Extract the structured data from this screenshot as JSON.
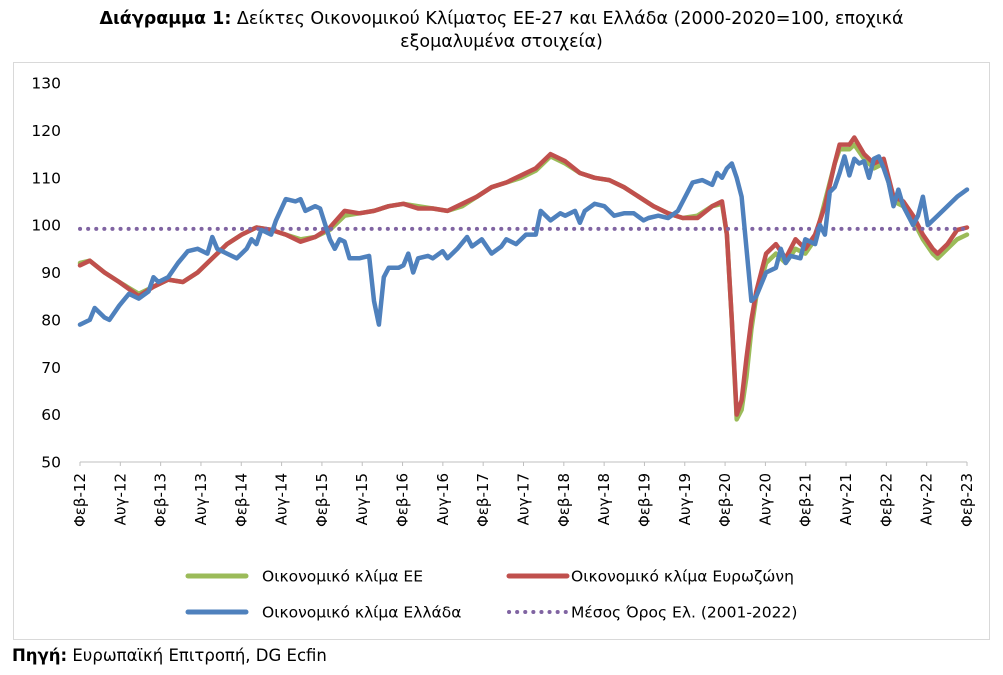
{
  "header": {
    "title_bold": "Διάγραμμα 1:",
    "title_line1": " Δείκτες Οικονομικού Κλίματος ΕΕ-27 και Ελλάδα (2000-2020=100, εποχικά",
    "title_line2": "εξομαλυμένα στοιχεία)"
  },
  "footer": {
    "source_bold": "Πηγή:",
    "source_text": " Ευρωπαϊκή Επιτροπή, DG Ecfin"
  },
  "chart_data": {
    "type": "line",
    "title": "Διάγραμμα 1: Δείκτες Οικονομικού Κλίματος ΕΕ-27 και Ελλάδα (2000-2020=100, εποχικά εξομαλυμένα στοιχεία)",
    "ylim": [
      50,
      130
    ],
    "yticks": [
      50,
      60,
      70,
      80,
      90,
      100,
      110,
      120,
      130
    ],
    "grid": false,
    "legend_position": "bottom",
    "x_start": "2012-02",
    "x_end": "2023-02",
    "xtick_labels": [
      "Φεβ-12",
      "Αυγ-12",
      "Φεβ-13",
      "Αυγ-13",
      "Φεβ-14",
      "Αυγ-14",
      "Φεβ-15",
      "Αυγ-15",
      "Φεβ-16",
      "Αυγ-16",
      "Φεβ-17",
      "Αυγ-17",
      "Φεβ-18",
      "Αυγ-18",
      "Φεβ-19",
      "Αυγ-19",
      "Φεβ-20",
      "Αυγ-20",
      "Φεβ-21",
      "Αυγ-21",
      "Φεβ-22",
      "Αυγ-22",
      "Φεβ-23"
    ],
    "series": [
      {
        "name": "Οικονομικό κλίμα ΕΕ",
        "color": "#9bbb59",
        "style": "solid",
        "points": [
          [
            0,
            92
          ],
          [
            2,
            92.5
          ],
          [
            5,
            90
          ],
          [
            8,
            88
          ],
          [
            12,
            85.5
          ],
          [
            15,
            87
          ],
          [
            18,
            88.5
          ],
          [
            21,
            88
          ],
          [
            24,
            90
          ],
          [
            27,
            93
          ],
          [
            30,
            96
          ],
          [
            33,
            98
          ],
          [
            36,
            99.5
          ],
          [
            39,
            99
          ],
          [
            42,
            98
          ],
          [
            45,
            97
          ],
          [
            48,
            97.5
          ],
          [
            51,
            99
          ],
          [
            54,
            102
          ],
          [
            57,
            102.5
          ],
          [
            60,
            103
          ],
          [
            63,
            104
          ],
          [
            66,
            104.5
          ],
          [
            69,
            104
          ],
          [
            72,
            103.5
          ],
          [
            75,
            103
          ],
          [
            78,
            104
          ],
          [
            81,
            106
          ],
          [
            84,
            108
          ],
          [
            87,
            109
          ],
          [
            90,
            110
          ],
          [
            93,
            111.5
          ],
          [
            96,
            114.5
          ],
          [
            99,
            113
          ],
          [
            102,
            111
          ],
          [
            105,
            110
          ],
          [
            108,
            109.5
          ],
          [
            111,
            108
          ],
          [
            114,
            106
          ],
          [
            117,
            104
          ],
          [
            120,
            102.5
          ],
          [
            123,
            101.5
          ],
          [
            126,
            102
          ],
          [
            129,
            104
          ],
          [
            131,
            104.5
          ],
          [
            132,
            98
          ],
          [
            133,
            80
          ],
          [
            134,
            59
          ],
          [
            135,
            61
          ],
          [
            136,
            68
          ],
          [
            137,
            78
          ],
          [
            138,
            85
          ],
          [
            140,
            92
          ],
          [
            142,
            94
          ],
          [
            144,
            92
          ],
          [
            146,
            95
          ],
          [
            148,
            94
          ],
          [
            150,
            97
          ],
          [
            152,
            105
          ],
          [
            154,
            113
          ],
          [
            155,
            116
          ],
          [
            157,
            116
          ],
          [
            158,
            117
          ],
          [
            160,
            114
          ],
          [
            162,
            112
          ],
          [
            164,
            113
          ],
          [
            166,
            105
          ],
          [
            168,
            104
          ],
          [
            170,
            101
          ],
          [
            172,
            97
          ],
          [
            174,
            94
          ],
          [
            175,
            93
          ],
          [
            177,
            95
          ],
          [
            179,
            97
          ],
          [
            181,
            98
          ]
        ]
      },
      {
        "name": "Οικονομικό κλίμα Ευρωζώνη",
        "color": "#c0504d",
        "style": "solid",
        "points": [
          [
            0,
            91.5
          ],
          [
            2,
            92.5
          ],
          [
            5,
            90
          ],
          [
            8,
            88
          ],
          [
            12,
            85
          ],
          [
            15,
            87
          ],
          [
            18,
            88.5
          ],
          [
            21,
            88
          ],
          [
            24,
            90
          ],
          [
            27,
            93
          ],
          [
            30,
            96
          ],
          [
            33,
            98
          ],
          [
            36,
            99.5
          ],
          [
            39,
            99
          ],
          [
            42,
            98
          ],
          [
            45,
            96.5
          ],
          [
            48,
            97.5
          ],
          [
            51,
            99.5
          ],
          [
            54,
            103
          ],
          [
            57,
            102.5
          ],
          [
            60,
            103
          ],
          [
            63,
            104
          ],
          [
            66,
            104.5
          ],
          [
            69,
            103.5
          ],
          [
            72,
            103.5
          ],
          [
            75,
            103
          ],
          [
            78,
            104.5
          ],
          [
            81,
            106
          ],
          [
            84,
            108
          ],
          [
            87,
            109
          ],
          [
            90,
            110.5
          ],
          [
            93,
            112
          ],
          [
            96,
            115
          ],
          [
            99,
            113.5
          ],
          [
            102,
            111
          ],
          [
            105,
            110
          ],
          [
            108,
            109.5
          ],
          [
            111,
            108
          ],
          [
            114,
            106
          ],
          [
            117,
            104
          ],
          [
            120,
            102.5
          ],
          [
            123,
            101.5
          ],
          [
            126,
            101.5
          ],
          [
            129,
            104
          ],
          [
            131,
            105
          ],
          [
            132,
            98
          ],
          [
            133,
            80
          ],
          [
            134,
            60
          ],
          [
            135,
            63
          ],
          [
            136,
            72
          ],
          [
            137,
            80
          ],
          [
            138,
            86
          ],
          [
            140,
            94
          ],
          [
            142,
            96
          ],
          [
            144,
            93
          ],
          [
            146,
            97
          ],
          [
            148,
            95
          ],
          [
            150,
            98
          ],
          [
            152,
            104
          ],
          [
            154,
            113
          ],
          [
            155,
            117
          ],
          [
            157,
            117
          ],
          [
            158,
            118.5
          ],
          [
            160,
            115
          ],
          [
            162,
            113
          ],
          [
            164,
            114
          ],
          [
            166,
            106
          ],
          [
            168,
            105
          ],
          [
            170,
            102
          ],
          [
            172,
            98
          ],
          [
            174,
            95
          ],
          [
            175,
            94
          ],
          [
            177,
            96
          ],
          [
            179,
            99
          ],
          [
            181,
            99.5
          ]
        ]
      },
      {
        "name": "Οικονομικό κλίμα Ελλάδα",
        "color": "#4f81bd",
        "style": "solid",
        "points": [
          [
            0,
            79
          ],
          [
            2,
            80
          ],
          [
            3,
            82.5
          ],
          [
            5,
            80.5
          ],
          [
            6,
            80
          ],
          [
            8,
            83
          ],
          [
            10,
            85.5
          ],
          [
            12,
            84.5
          ],
          [
            14,
            86
          ],
          [
            15,
            89
          ],
          [
            16,
            88
          ],
          [
            18,
            89
          ],
          [
            20,
            92
          ],
          [
            22,
            94.5
          ],
          [
            24,
            95
          ],
          [
            26,
            94
          ],
          [
            27,
            97.5
          ],
          [
            28,
            95
          ],
          [
            30,
            94
          ],
          [
            32,
            93
          ],
          [
            34,
            95
          ],
          [
            35,
            97
          ],
          [
            36,
            96
          ],
          [
            37,
            99
          ],
          [
            39,
            98
          ],
          [
            40,
            101
          ],
          [
            42,
            105.5
          ],
          [
            44,
            105
          ],
          [
            45,
            105.5
          ],
          [
            46,
            103
          ],
          [
            48,
            104
          ],
          [
            49,
            103.5
          ],
          [
            51,
            97
          ],
          [
            52,
            95
          ],
          [
            53,
            97
          ],
          [
            54,
            96.5
          ],
          [
            55,
            93
          ],
          [
            57,
            93
          ],
          [
            59,
            93.5
          ],
          [
            60,
            84
          ],
          [
            61,
            79
          ],
          [
            62,
            89
          ],
          [
            63,
            91
          ],
          [
            65,
            91
          ],
          [
            66,
            91.5
          ],
          [
            67,
            94
          ],
          [
            68,
            90
          ],
          [
            69,
            93
          ],
          [
            71,
            93.5
          ],
          [
            72,
            93
          ],
          [
            74,
            94.5
          ],
          [
            75,
            93
          ],
          [
            77,
            95
          ],
          [
            79,
            97.5
          ],
          [
            80,
            95.5
          ],
          [
            82,
            97
          ],
          [
            84,
            94
          ],
          [
            86,
            95.5
          ],
          [
            87,
            97
          ],
          [
            89,
            96
          ],
          [
            91,
            98
          ],
          [
            93,
            98
          ],
          [
            94,
            103
          ],
          [
            96,
            101
          ],
          [
            98,
            102.5
          ],
          [
            99,
            102
          ],
          [
            101,
            103
          ],
          [
            102,
            100.5
          ],
          [
            103,
            103
          ],
          [
            105,
            104.5
          ],
          [
            107,
            104
          ],
          [
            109,
            102
          ],
          [
            111,
            102.5
          ],
          [
            113,
            102.5
          ],
          [
            115,
            101
          ],
          [
            116,
            101.5
          ],
          [
            118,
            102
          ],
          [
            120,
            101.5
          ],
          [
            122,
            103
          ],
          [
            124,
            107
          ],
          [
            125,
            109
          ],
          [
            127,
            109.5
          ],
          [
            129,
            108.5
          ],
          [
            130,
            111
          ],
          [
            131,
            110
          ],
          [
            132,
            112
          ],
          [
            133,
            113
          ],
          [
            134,
            110
          ],
          [
            135,
            106
          ],
          [
            136,
            95
          ],
          [
            137,
            84
          ],
          [
            138,
            85
          ],
          [
            140,
            90
          ],
          [
            142,
            91
          ],
          [
            143,
            95
          ],
          [
            144,
            92
          ],
          [
            145,
            93.5
          ],
          [
            147,
            93
          ],
          [
            148,
            97
          ],
          [
            150,
            96
          ],
          [
            151,
            100
          ],
          [
            152,
            98
          ],
          [
            153,
            107
          ],
          [
            154,
            108
          ],
          [
            155,
            111
          ],
          [
            156,
            114.5
          ],
          [
            157,
            110.5
          ],
          [
            158,
            114
          ],
          [
            159,
            113
          ],
          [
            160,
            113.5
          ],
          [
            161,
            110
          ],
          [
            162,
            114
          ],
          [
            163,
            114.5
          ],
          [
            164,
            112
          ],
          [
            165,
            109
          ],
          [
            166,
            104
          ],
          [
            167,
            107.5
          ],
          [
            168,
            104
          ],
          [
            170,
            100
          ],
          [
            171,
            102
          ],
          [
            172,
            106
          ],
          [
            173,
            100
          ],
          [
            175,
            102
          ],
          [
            177,
            104
          ],
          [
            179,
            106
          ],
          [
            181,
            107.5
          ]
        ]
      },
      {
        "name": "Μέσος Όρος Ελ. (2001-2022)",
        "color": "#8064a2",
        "style": "dotted",
        "points": [
          [
            0,
            99.2
          ],
          [
            181,
            99.2
          ]
        ]
      }
    ]
  }
}
